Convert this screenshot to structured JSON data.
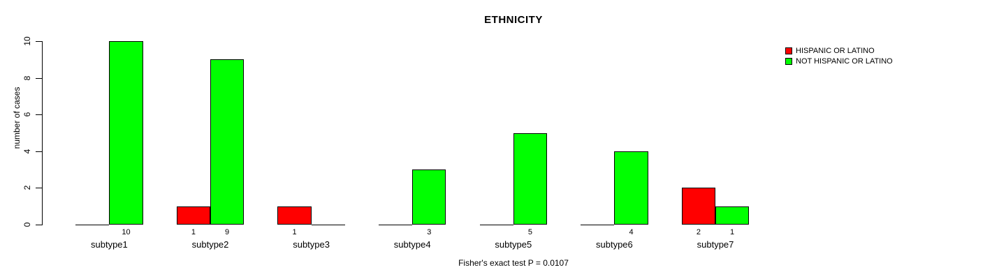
{
  "chart_data": {
    "type": "bar",
    "title": "ETHNICITY",
    "xlabel": "",
    "ylabel": "number of cases",
    "categories": [
      "subtype1",
      "subtype2",
      "subtype3",
      "subtype4",
      "subtype5",
      "subtype6",
      "subtype7"
    ],
    "series": [
      {
        "name": "HISPANIC OR LATINO",
        "color": "#FF0000",
        "values": [
          0,
          1,
          1,
          0,
          0,
          0,
          2
        ]
      },
      {
        "name": "NOT HISPANIC OR LATINO",
        "color": "#00FF00",
        "values": [
          10,
          9,
          0,
          3,
          5,
          4,
          1
        ]
      }
    ],
    "ylim": [
      0,
      10
    ],
    "yticks": [
      0,
      2,
      4,
      6,
      8,
      10
    ],
    "bar_value_labels": true,
    "grid": false,
    "legend_position": "top-right",
    "annotation": "Fisher's exact test P = 0.0107"
  },
  "icons": {
    "legend_swatch_red": "red-square-swatch",
    "legend_swatch_green": "green-square-swatch"
  }
}
